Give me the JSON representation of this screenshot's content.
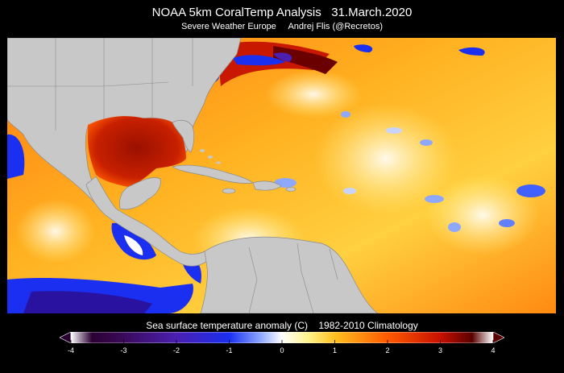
{
  "header": {
    "title": "NOAA 5km CoralTemp Analysis   31.March.2020",
    "subtitle": "Severe Weather Europe     Andrej Flis (@Recretos)"
  },
  "map": {
    "region": "Gulf of Mexico, Caribbean Sea and western North Atlantic",
    "land_color": "#c8c8c8",
    "border_color": "#8a8a8a"
  },
  "colorbar": {
    "title": "Sea surface temperature anomaly (C)    1982-2010 Climatology",
    "ticks": [
      "-4",
      "-3",
      "-2",
      "-1",
      "0",
      "1",
      "2",
      "3",
      "4"
    ],
    "range": [
      -4,
      4
    ],
    "extend": "both",
    "stops": [
      {
        "value": -4,
        "color": "#ffffff"
      },
      {
        "value": -3.6,
        "color": "#2a0033"
      },
      {
        "value": -3,
        "color": "#3a0a5a"
      },
      {
        "value": -2,
        "color": "#4b1fb0"
      },
      {
        "value": -1,
        "color": "#1a2ff0"
      },
      {
        "value": -0.4,
        "color": "#8fa8ff"
      },
      {
        "value": 0,
        "color": "#ffffff"
      },
      {
        "value": 0.5,
        "color": "#fff38a"
      },
      {
        "value": 1,
        "color": "#ffc020"
      },
      {
        "value": 2,
        "color": "#ff5a00"
      },
      {
        "value": 3,
        "color": "#c81000"
      },
      {
        "value": 3.6,
        "color": "#5a0000"
      },
      {
        "value": 4,
        "color": "#ffffff"
      }
    ]
  }
}
